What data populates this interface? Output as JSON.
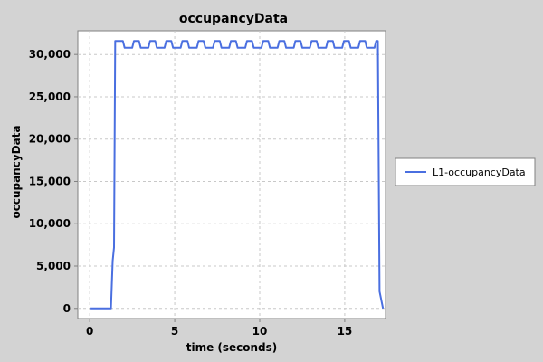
{
  "chart_data": {
    "type": "line",
    "title": "occupancyData",
    "xlabel": "time (seconds)",
    "ylabel": "occupancyData",
    "xlim": [
      -0.7,
      17.4
    ],
    "ylim": [
      -1200,
      32800
    ],
    "xticks": [
      0,
      5,
      10,
      15
    ],
    "xtick_labels": [
      "0",
      "5",
      "10",
      "15"
    ],
    "yticks": [
      0,
      5000,
      10000,
      15000,
      20000,
      25000,
      30000
    ],
    "ytick_labels": [
      "0",
      "5,000",
      "10,000",
      "15,000",
      "20,000",
      "25,000",
      "30,000"
    ],
    "grid": true,
    "legend_position": "right",
    "series": [
      {
        "name": "L1-occupancyData",
        "color": "#4a6fe0",
        "x": [
          0.05,
          1.25,
          1.35,
          1.43,
          1.5,
          1.58,
          1.95,
          2.05,
          2.5,
          2.6,
          2.9,
          3.0,
          3.45,
          3.55,
          3.85,
          3.95,
          4.4,
          4.5,
          4.8,
          4.9,
          5.35,
          5.45,
          5.75,
          5.85,
          6.3,
          6.4,
          6.7,
          6.8,
          7.25,
          7.35,
          7.65,
          7.75,
          8.2,
          8.3,
          8.6,
          8.7,
          9.15,
          9.25,
          9.55,
          9.65,
          10.1,
          10.2,
          10.5,
          10.6,
          11.05,
          11.15,
          11.45,
          11.55,
          12.0,
          12.1,
          12.4,
          12.5,
          12.95,
          13.05,
          13.35,
          13.45,
          13.9,
          14.0,
          14.3,
          14.4,
          14.85,
          14.95,
          15.25,
          15.35,
          15.8,
          15.9,
          16.2,
          16.3,
          16.75,
          16.85,
          16.95,
          17.05,
          17.25
        ],
        "y": [
          0,
          0,
          5600,
          7200,
          31600,
          31600,
          31600,
          30800,
          30800,
          31600,
          31600,
          30800,
          30800,
          31600,
          31600,
          30800,
          30800,
          31600,
          31600,
          30800,
          30800,
          31600,
          31600,
          30800,
          30800,
          31600,
          31600,
          30800,
          30800,
          31600,
          31600,
          30800,
          30800,
          31600,
          31600,
          30800,
          30800,
          31600,
          31600,
          30800,
          30800,
          31600,
          31600,
          30800,
          30800,
          31600,
          31600,
          30800,
          30800,
          31600,
          31600,
          30800,
          30800,
          31600,
          31600,
          30800,
          30800,
          31600,
          31600,
          30800,
          30800,
          31600,
          31600,
          30800,
          30800,
          31600,
          31600,
          30800,
          30800,
          31600,
          31600,
          2000,
          0
        ]
      }
    ]
  }
}
